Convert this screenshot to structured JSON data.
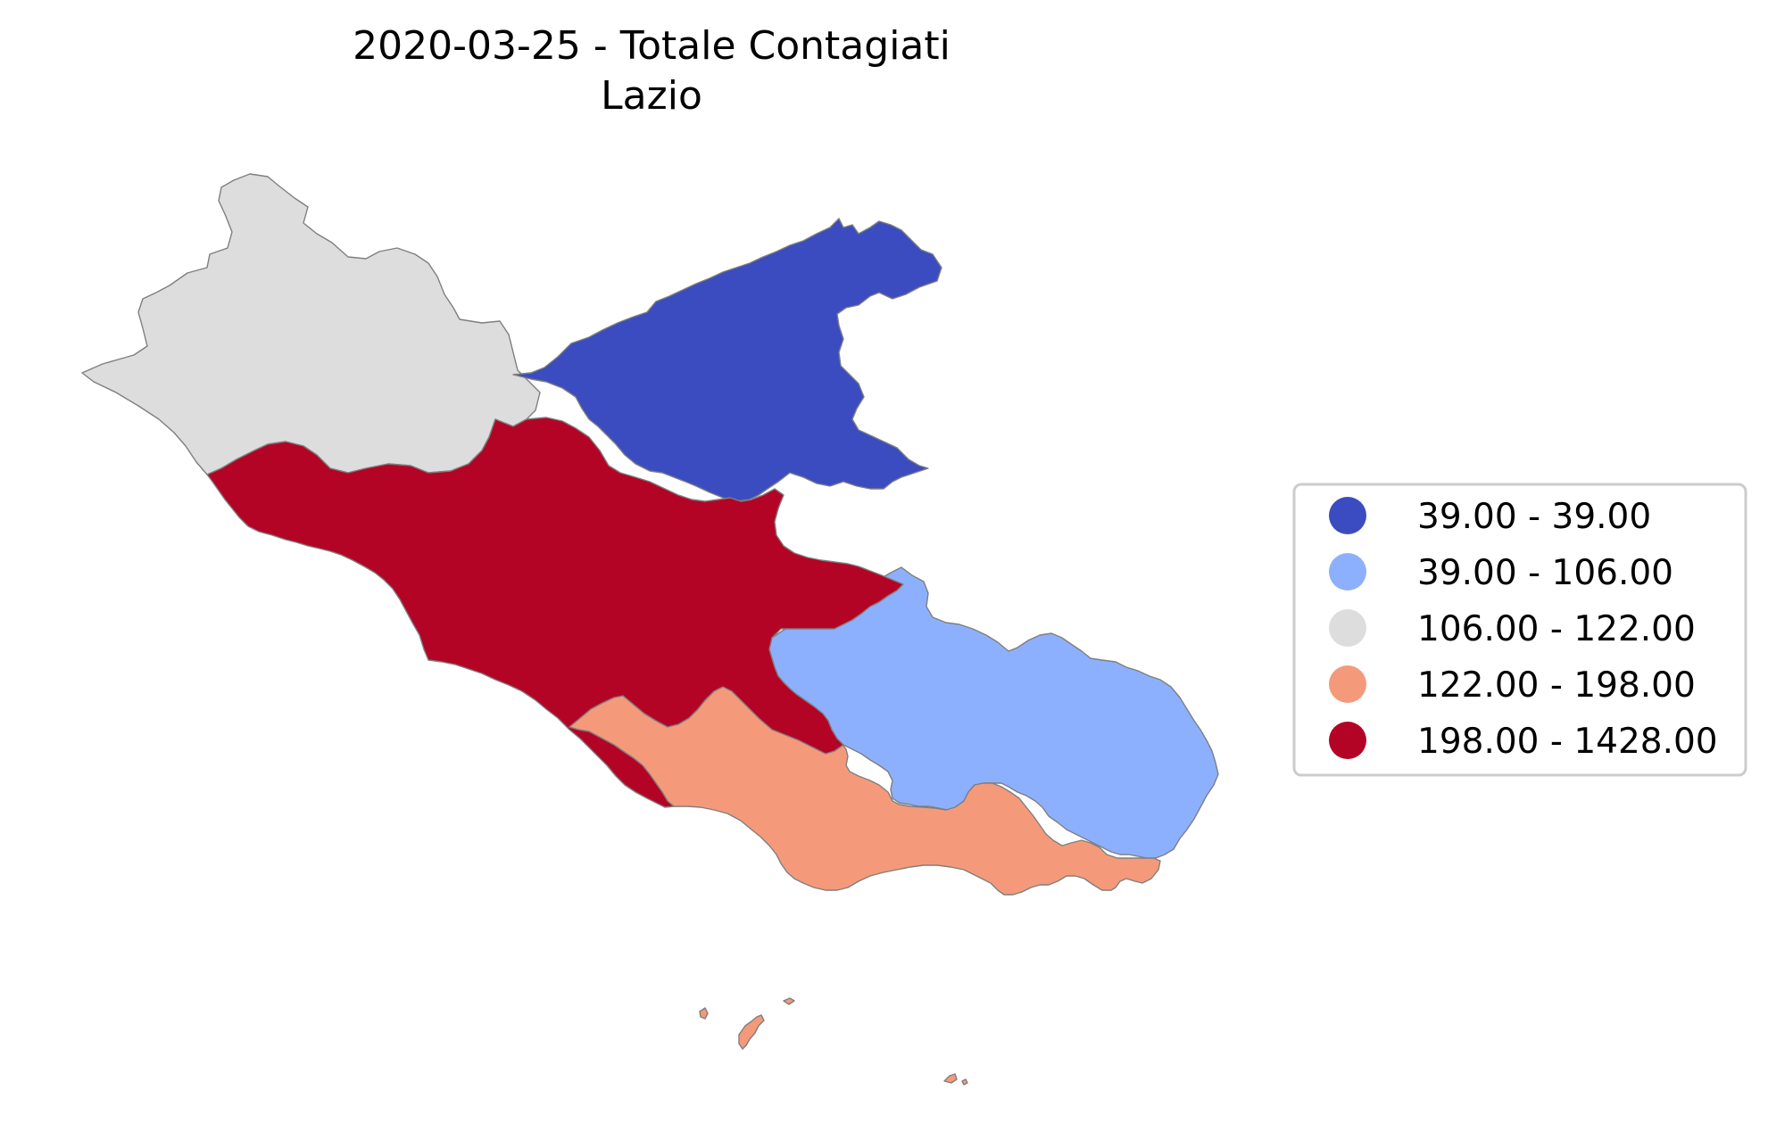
{
  "title_line1": "2020-03-25 - Totale Contagiati",
  "title_line2": "Lazio",
  "colors": {
    "class1": "#3b4cc0",
    "class2": "#8db0fe",
    "class3": "#dddddd",
    "class4": "#f49a7b",
    "class5": "#b40426",
    "legend_border": "#cccccc"
  },
  "legend": {
    "items": [
      {
        "label": "39.00 - 39.00",
        "color": "#3b4cc0"
      },
      {
        "label": "39.00 - 106.00",
        "color": "#8db0fe"
      },
      {
        "label": "106.00 - 122.00",
        "color": "#dddddd"
      },
      {
        "label": "122.00 - 198.00",
        "color": "#f49a7b"
      },
      {
        "label": "198.00 - 1428.00",
        "color": "#b40426"
      }
    ]
  }
}
